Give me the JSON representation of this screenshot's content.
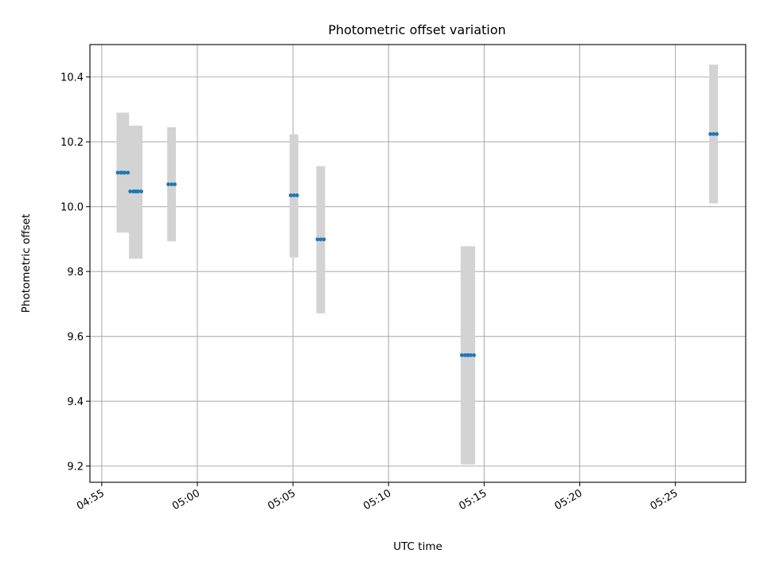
{
  "chart_data": {
    "type": "scatter",
    "title": "Photometric offset variation",
    "xlabel": "UTC time",
    "ylabel": "Photometric offset",
    "x_ticks": [
      "04:55",
      "05:00",
      "05:05",
      "05:10",
      "05:15",
      "05:20",
      "05:25"
    ],
    "x_tick_minutes": [
      -5,
      0,
      5,
      10,
      15,
      20,
      25
    ],
    "y_ticks": [
      "9.2",
      "9.4",
      "9.6",
      "9.8",
      "10.0",
      "10.2",
      "10.4"
    ],
    "xlim_minutes_from_0500": [
      -5.62,
      28.68
    ],
    "ylim": [
      9.15,
      10.5
    ],
    "grid": true,
    "colors": {
      "marker": "#1f77b4",
      "errorbar": "#d3d3d3",
      "grid": "#b0b0b0"
    },
    "series": [
      {
        "points": [
          {
            "t": -4.0,
            "y": 10.105,
            "err_low": 9.92,
            "err_high": 10.29
          },
          {
            "t": -3.8,
            "y": 10.105,
            "err_low": 9.92,
            "err_high": 10.29
          },
          {
            "t": -3.35,
            "y": 10.047,
            "err_low": 9.84,
            "err_high": 10.25
          },
          {
            "t": -3.1,
            "y": 10.047,
            "err_low": 9.84,
            "err_high": 10.25
          },
          {
            "t": -1.35,
            "y": 10.069,
            "err_low": 9.893,
            "err_high": 10.245
          },
          {
            "t": 5.05,
            "y": 10.035,
            "err_low": 9.843,
            "err_high": 10.223
          },
          {
            "t": 6.45,
            "y": 9.899,
            "err_low": 9.671,
            "err_high": 10.125
          },
          {
            "t": 14.0,
            "y": 9.542,
            "err_low": 9.205,
            "err_high": 9.878
          },
          {
            "t": 14.3,
            "y": 9.542,
            "err_low": 9.205,
            "err_high": 9.878
          },
          {
            "t": 27.0,
            "y": 10.224,
            "err_low": 10.01,
            "err_high": 10.438
          }
        ]
      }
    ]
  }
}
